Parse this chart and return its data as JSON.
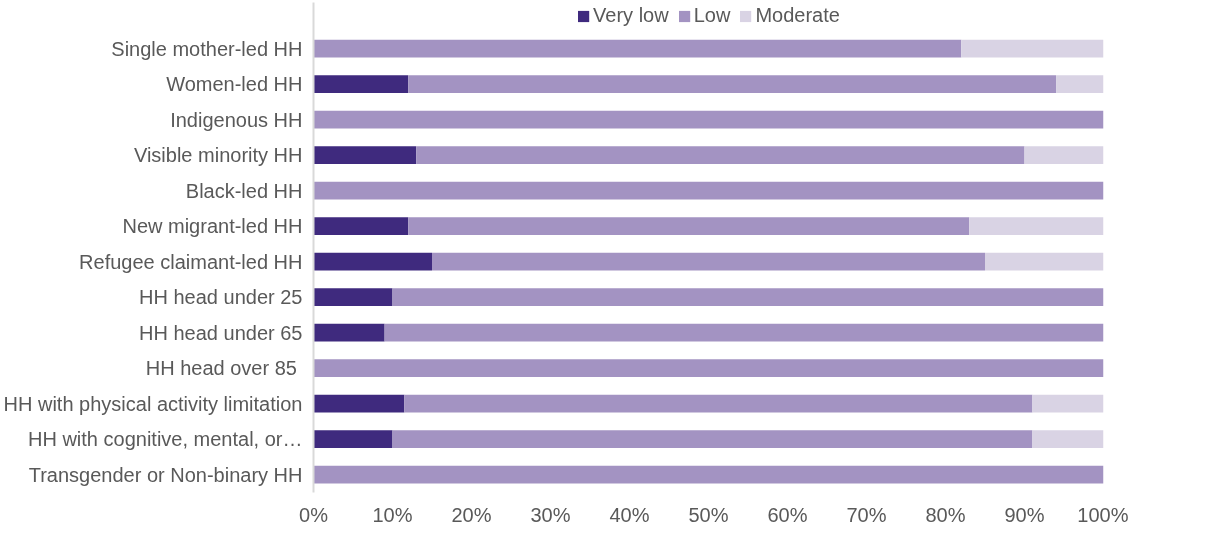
{
  "chart_data": {
    "type": "bar",
    "orientation": "horizontal",
    "stacked": true,
    "categories": [
      "Single mother-led HH",
      "Women-led HH",
      "Indigenous HH",
      "Visible minority HH",
      "Black-led HH",
      "New migrant-led HH",
      "Refugee claimant-led HH",
      "HH head under 25",
      "HH head under 65",
      "HH  head over 85",
      "HH with physical activity limitation",
      "HH with cognitive, mental, or…",
      "Transgender or Non-binary HH"
    ],
    "series": [
      {
        "name": "Very low",
        "color": "#3f2a7e",
        "values": [
          0,
          12,
          0,
          13,
          0,
          12,
          15,
          10,
          9,
          0,
          11.5,
          10,
          0
        ]
      },
      {
        "name": "Low",
        "color": "#a393c2",
        "values": [
          82,
          82,
          100,
          77,
          100,
          71,
          70,
          90,
          91,
          100,
          79.5,
          81,
          100
        ]
      },
      {
        "name": "Moderate",
        "color": "#d9d3e4",
        "values": [
          18,
          6,
          0,
          10,
          0,
          17,
          15,
          0,
          0,
          0,
          9,
          9,
          0
        ]
      }
    ],
    "xlim": [
      0,
      100
    ],
    "xticks": [
      {
        "value": 0,
        "label": "0%"
      },
      {
        "value": 10,
        "label": "10%"
      },
      {
        "value": 20,
        "label": "20%"
      },
      {
        "value": 30,
        "label": "30%"
      },
      {
        "value": 40,
        "label": "40%"
      },
      {
        "value": 50,
        "label": "50%"
      },
      {
        "value": 60,
        "label": "60%"
      },
      {
        "value": 70,
        "label": "70%"
      },
      {
        "value": 80,
        "label": "80%"
      },
      {
        "value": 90,
        "label": "90%"
      },
      {
        "value": 100,
        "label": "100%"
      }
    ],
    "grid": false,
    "legend": "top"
  }
}
